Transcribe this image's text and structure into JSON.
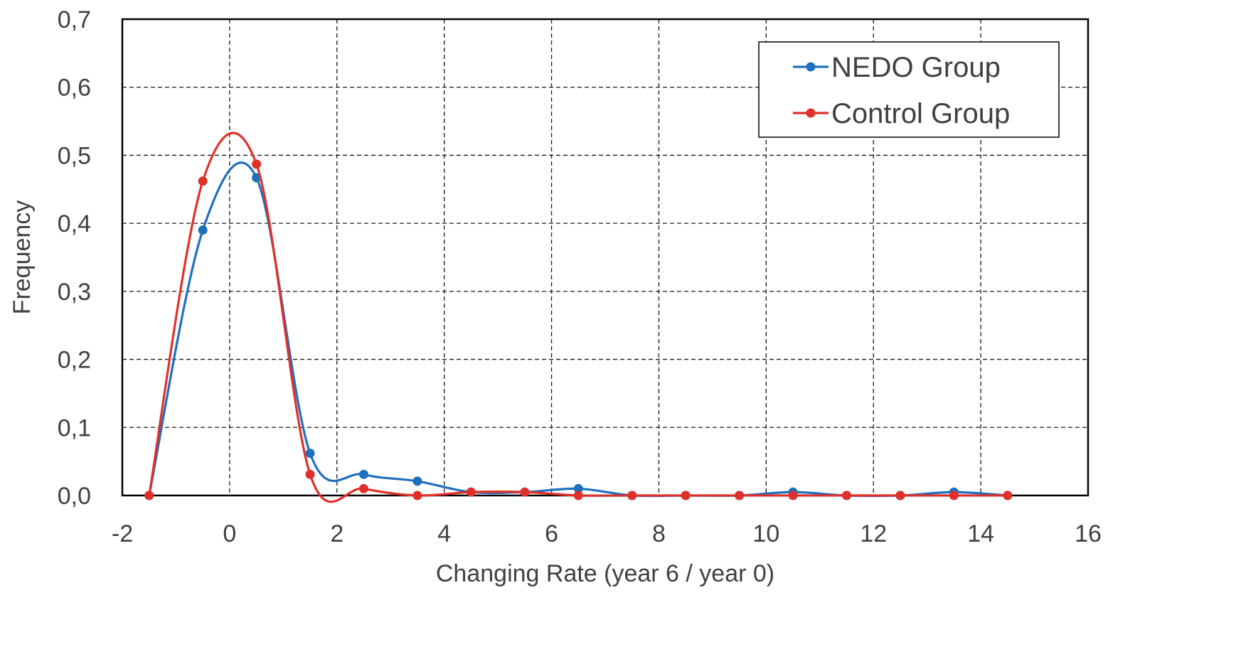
{
  "chart_data": {
    "type": "line",
    "title": "",
    "xlabel": "Changing Rate (year 6 / year 0)",
    "ylabel": "Frequency",
    "xlim": [
      -2,
      16
    ],
    "ylim": [
      0,
      0.7
    ],
    "x_ticks": [
      -2,
      0,
      2,
      4,
      6,
      8,
      10,
      12,
      14,
      16
    ],
    "x_tick_labels": [
      "-2",
      "0",
      "2",
      "4",
      "6",
      "8",
      "10",
      "12",
      "14",
      "16"
    ],
    "y_ticks": [
      0,
      0.1,
      0.2,
      0.3,
      0.4,
      0.5,
      0.6,
      0.7
    ],
    "y_tick_labels": [
      "0,0",
      "0,1",
      "0,2",
      "0,3",
      "0,4",
      "0,5",
      "0,6",
      "0,7"
    ],
    "grid": true,
    "smooth": true,
    "legend_position": "top-right",
    "x": [
      -1.5,
      -0.5,
      0.5,
      1.5,
      2.5,
      3.5,
      4.5,
      5.5,
      6.5,
      7.5,
      8.5,
      9.5,
      10.5,
      11.5,
      12.5,
      13.5,
      14.5
    ],
    "series": [
      {
        "name": "NEDO Group",
        "color": "#1f6fbf",
        "values": [
          0,
          0.39,
          0.467,
          0.062,
          0.031,
          0.021,
          0.005,
          0.005,
          0.01,
          0,
          0,
          0,
          0.005,
          0,
          0,
          0.005,
          0
        ]
      },
      {
        "name": "Control Group",
        "color": "#e0302a",
        "values": [
          0,
          0.462,
          0.487,
          0.031,
          0.01,
          0,
          0.005,
          0.005,
          0,
          0,
          0,
          0,
          0,
          0,
          0,
          0,
          0
        ]
      }
    ]
  }
}
